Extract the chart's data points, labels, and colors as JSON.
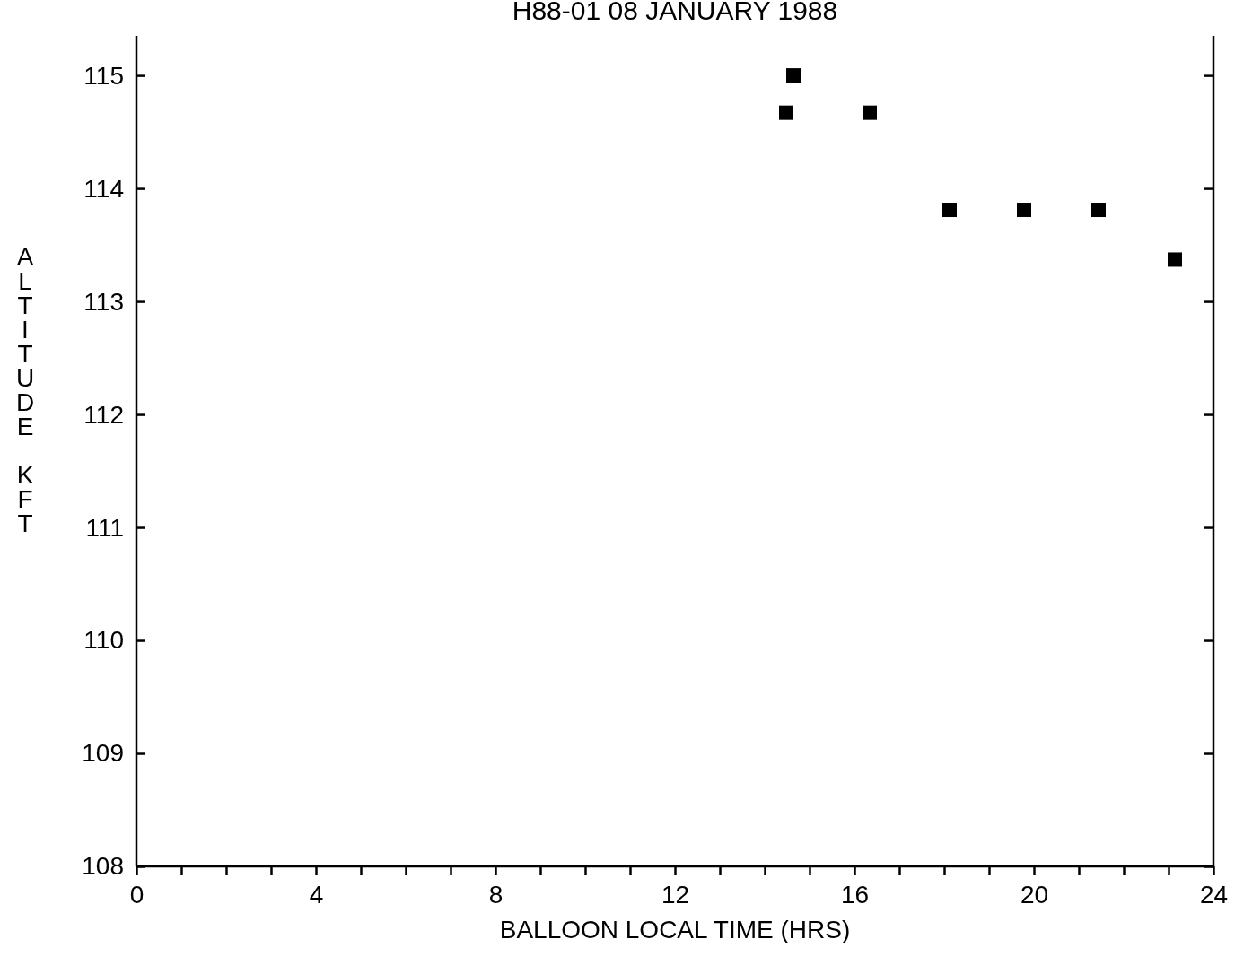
{
  "chart_data": {
    "type": "scatter",
    "title": "H88-01 08 JANUARY 1988",
    "xlabel": "BALLOON LOCAL TIME (HRS)",
    "ylabel": "ALTITUDE KFT",
    "x": [
      14.48,
      14.64,
      16.34,
      18.12,
      19.78,
      21.44,
      23.14
    ],
    "series": [
      {
        "color": "#000000",
        "values": [
          114.67,
          115.0,
          114.67,
          113.81,
          113.81,
          113.81,
          113.37
        ]
      }
    ],
    "xlim": [
      0,
      24
    ],
    "ylim": [
      108,
      115.35
    ],
    "xticks": [
      0,
      {
        "value": 1,
        "label": null
      },
      {
        "value": 2,
        "label": null
      },
      {
        "value": 3,
        "label": null
      },
      4,
      {
        "value": 5,
        "label": null
      },
      {
        "value": 6,
        "label": null
      },
      {
        "value": 7,
        "label": null
      },
      8,
      {
        "value": 9,
        "label": null
      },
      {
        "value": 10,
        "label": null
      },
      {
        "value": 11,
        "label": null
      },
      12,
      {
        "value": 13,
        "label": null
      },
      {
        "value": 14,
        "label": null
      },
      {
        "value": 15,
        "label": null
      },
      16,
      {
        "value": 17,
        "label": null
      },
      {
        "value": 18,
        "label": null
      },
      {
        "value": 19,
        "label": null
      },
      20,
      {
        "value": 21,
        "label": null
      },
      {
        "value": 22,
        "label": null
      },
      {
        "value": 23,
        "label": null
      },
      24
    ],
    "yticks": [
      108,
      109,
      110,
      111,
      112,
      113,
      114,
      115
    ],
    "marker": "square",
    "grid": false
  }
}
